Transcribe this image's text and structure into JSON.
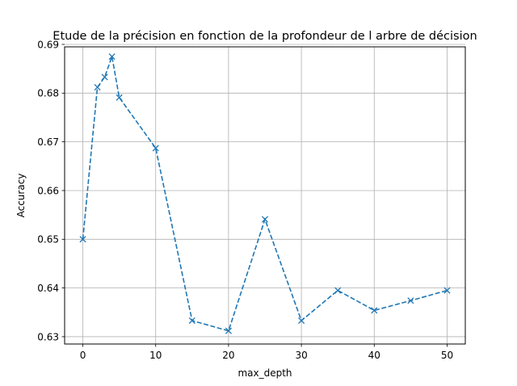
{
  "chart_data": {
    "type": "line",
    "title": "Etude de la précision en fonction de la profondeur de l arbre de décision",
    "xlabel": "max_depth",
    "ylabel": "Accuracy",
    "xlim": [
      -2.5,
      52.5
    ],
    "ylim": [
      0.6285,
      0.6895
    ],
    "x_ticks": [
      0,
      10,
      20,
      30,
      40,
      50
    ],
    "x_tick_labels": [
      "0",
      "10",
      "20",
      "30",
      "40",
      "50"
    ],
    "y_ticks": [
      0.63,
      0.64,
      0.65,
      0.66,
      0.67,
      0.68,
      0.69
    ],
    "y_tick_labels": [
      "0.63",
      "0.64",
      "0.65",
      "0.66",
      "0.67",
      "0.68",
      "0.69"
    ],
    "grid": true,
    "series": [
      {
        "color": "#1f77b4",
        "line_style": "dashed",
        "marker": "x",
        "x": [
          0,
          2,
          3,
          4,
          5,
          10,
          15,
          20,
          25,
          30,
          35,
          40,
          45,
          50
        ],
        "values": [
          0.65,
          0.6812,
          0.6833,
          0.6875,
          0.6791,
          0.6687,
          0.6333,
          0.6312,
          0.6541,
          0.6333,
          0.6395,
          0.6354,
          0.6374,
          0.6395
        ]
      }
    ]
  }
}
